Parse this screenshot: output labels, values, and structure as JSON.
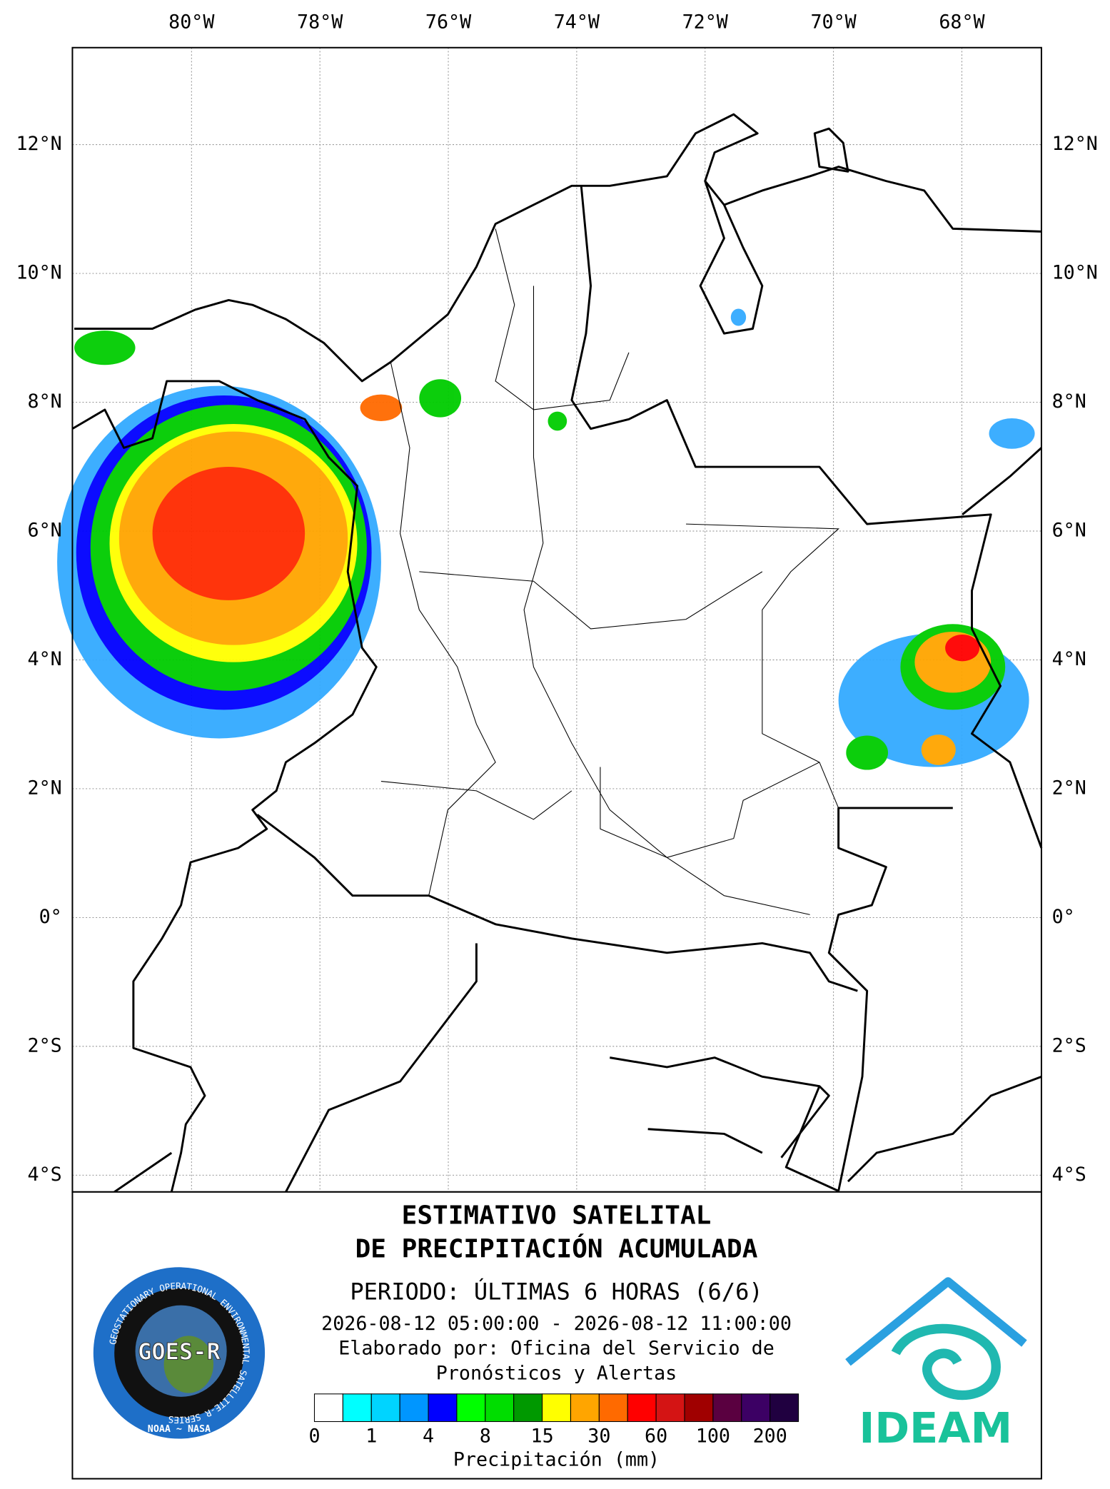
{
  "map": {
    "longitudes": [
      {
        "value": -80,
        "label": "80°W"
      },
      {
        "value": -78,
        "label": "78°W"
      },
      {
        "value": -76,
        "label": "76°W"
      },
      {
        "value": -74,
        "label": "74°W"
      },
      {
        "value": -72,
        "label": "72°W"
      },
      {
        "value": -70,
        "label": "70°W"
      },
      {
        "value": -68,
        "label": "68°W"
      }
    ],
    "latitudes": [
      {
        "value": 12,
        "label": "12°N"
      },
      {
        "value": 10,
        "label": "10°N"
      },
      {
        "value": 8,
        "label": "8°N"
      },
      {
        "value": 6,
        "label": "6°N"
      },
      {
        "value": 4,
        "label": "4°N"
      },
      {
        "value": 2,
        "label": "2°N"
      },
      {
        "value": 0,
        "label": "0°"
      },
      {
        "value": -2,
        "label": "2°S"
      },
      {
        "value": -4,
        "label": "4°S"
      }
    ]
  },
  "legend": {
    "title": [
      "ESTIMATIVO SATELITAL",
      "DE PRECIPITACIÓN ACUMULADA"
    ],
    "period": "PERIODO: ÚLTIMAS 6 HORAS (6/6)",
    "range": "2026-08-12 05:00:00 - 2026-08-12 11:00:00",
    "credit": [
      "Elaborado por: Oficina del Servicio de",
      "Pronósticos y Alertas"
    ],
    "colorbar": {
      "colors": [
        "#ffffff",
        "#00ffff",
        "#00d4ff",
        "#0096ff",
        "#0000ff",
        "#00ff00",
        "#00dd00",
        "#009900",
        "#ffff00",
        "#ffa500",
        "#ff6a00",
        "#ff0000",
        "#d41414",
        "#a00000",
        "#5a0040",
        "#3c0064",
        "#200040"
      ],
      "ticks": [
        0,
        1,
        4,
        8,
        15,
        30,
        60,
        100,
        200
      ],
      "label": "Precipitación (mm)"
    }
  },
  "logos": {
    "goes": {
      "name": "GOES-R",
      "ring": "GEOSTATIONARY OPERATIONAL ENVIRONMENTAL SATELLITE-R SERIES",
      "footer": "NOAA ~ NASA"
    },
    "ideam": "IDEAM"
  }
}
